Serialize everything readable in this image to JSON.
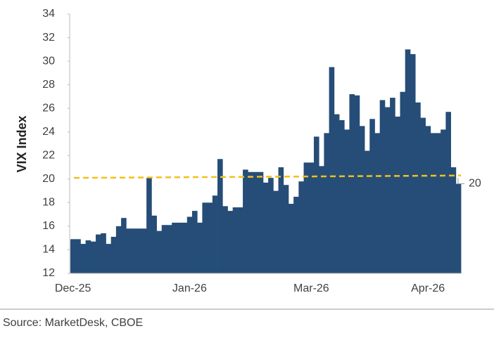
{
  "chart_data": {
    "type": "bar",
    "y_label": "VIX Index",
    "source": "Source: MarketDesk, CBOE",
    "color": "#254d77",
    "categories": [
      "Dec-25",
      null,
      null,
      null,
      null,
      null,
      null,
      null,
      null,
      null,
      null,
      null,
      null,
      null,
      null,
      null,
      null,
      null,
      null,
      null,
      null,
      null,
      null,
      "Jan-26",
      null,
      null,
      null,
      null,
      null,
      null,
      null,
      null,
      null,
      null,
      null,
      null,
      null,
      null,
      null,
      null,
      null,
      null,
      null,
      null,
      null,
      null,
      null,
      "Mar-26",
      null,
      null,
      null,
      null,
      null,
      null,
      null,
      null,
      null,
      null,
      null,
      null,
      null,
      null,
      null,
      null,
      null,
      null,
      null,
      null,
      null,
      null,
      "Apr-26",
      null,
      null,
      null,
      null,
      null,
      null
    ],
    "values": [
      14.9,
      14.9,
      14.5,
      14.8,
      14.7,
      15.3,
      15.4,
      14.5,
      15.1,
      16.0,
      16.7,
      15.8,
      15.8,
      15.8,
      15.8,
      20.1,
      16.9,
      15.6,
      16.1,
      16.1,
      16.3,
      16.3,
      16.3,
      16.8,
      17.3,
      16.3,
      18.0,
      18.0,
      18.6,
      21.7,
      17.7,
      17.3,
      17.6,
      17.6,
      20.8,
      20.6,
      20.6,
      20.6,
      19.7,
      20.1,
      19.0,
      21.0,
      19.5,
      17.9,
      18.5,
      19.8,
      21.4,
      21.4,
      23.6,
      21.1,
      23.9,
      29.5,
      25.5,
      25.0,
      24.2,
      27.2,
      27.1,
      24.5,
      22.4,
      25.1,
      23.9,
      26.7,
      26.1,
      26.9,
      25.3,
      27.4,
      31.0,
      30.6,
      26.5,
      25.2,
      24.5,
      23.9,
      23.9,
      24.2,
      25.7,
      21.0,
      19.6
    ],
    "trend_line": {
      "start": 20.1,
      "end": 20.3,
      "color": "#f2c01c"
    },
    "last_label": {
      "value": 19.6,
      "label": "20"
    },
    "ylim": [
      12,
      34
    ],
    "yticks": [
      12,
      14,
      16,
      18,
      20,
      22,
      24,
      26,
      28,
      30,
      32,
      34
    ]
  }
}
